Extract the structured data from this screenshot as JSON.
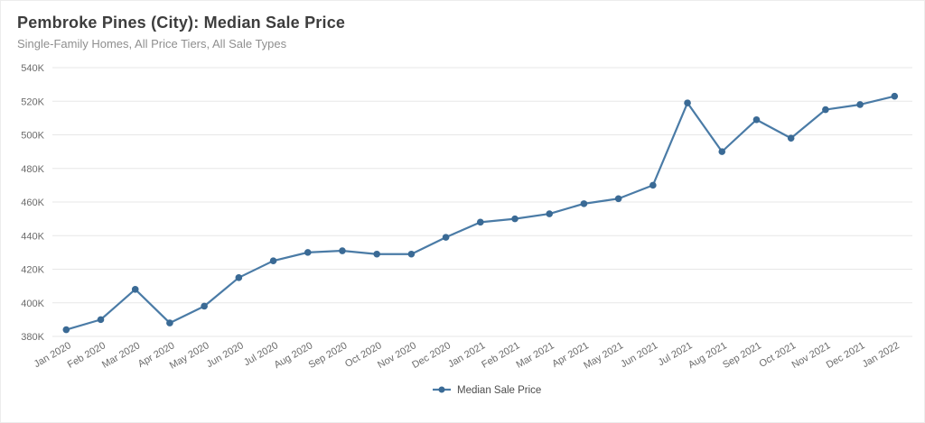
{
  "header": {
    "title": "Pembroke Pines (City): Median Sale Price",
    "subtitle": "Single-Family Homes, All Price Tiers, All Sale Types"
  },
  "legend": {
    "label": "Median Sale Price",
    "position": "bottom-center"
  },
  "colors": {
    "line": "#4a7ba6",
    "marker": "#3a6a95",
    "grid": "#e7e7e7",
    "tick_text": "#6b6b6b",
    "title_text": "#3d3d3d",
    "subtitle_text": "#8f8f8f",
    "legend_text": "#4d4d4d",
    "background": "#ffffff"
  },
  "chart_data": {
    "type": "line",
    "title": "Pembroke Pines (City): Median Sale Price",
    "subtitle": "Single-Family Homes, All Price Tiers, All Sale Types",
    "categories": [
      "Jan 2020",
      "Feb 2020",
      "Mar 2020",
      "Apr 2020",
      "May 2020",
      "Jun 2020",
      "Jul 2020",
      "Aug 2020",
      "Sep 2020",
      "Oct 2020",
      "Nov 2020",
      "Dec 2020",
      "Jan 2021",
      "Feb 2021",
      "Mar 2021",
      "Apr 2021",
      "May 2021",
      "Jun 2021",
      "Jul 2021",
      "Aug 2021",
      "Sep 2021",
      "Oct 2021",
      "Nov 2021",
      "Dec 2021",
      "Jan 2022"
    ],
    "series": [
      {
        "name": "Median Sale Price",
        "values": [
          384000,
          390000,
          408000,
          388000,
          398000,
          415000,
          425000,
          430000,
          431000,
          429000,
          429000,
          439000,
          448000,
          450000,
          453000,
          459000,
          462000,
          470000,
          519000,
          490000,
          509000,
          498000,
          515000,
          518000,
          523000
        ]
      }
    ],
    "xlabel": "",
    "ylabel": "",
    "ylim": [
      380000,
      540000
    ],
    "ytick_step": 20000,
    "ytick_labels": [
      "380K",
      "400K",
      "420K",
      "440K",
      "460K",
      "480K",
      "500K",
      "520K",
      "540K"
    ],
    "grid": "horizontal",
    "legend_position": "bottom-center",
    "marker": "circle",
    "x_tick_rotation": -30
  }
}
